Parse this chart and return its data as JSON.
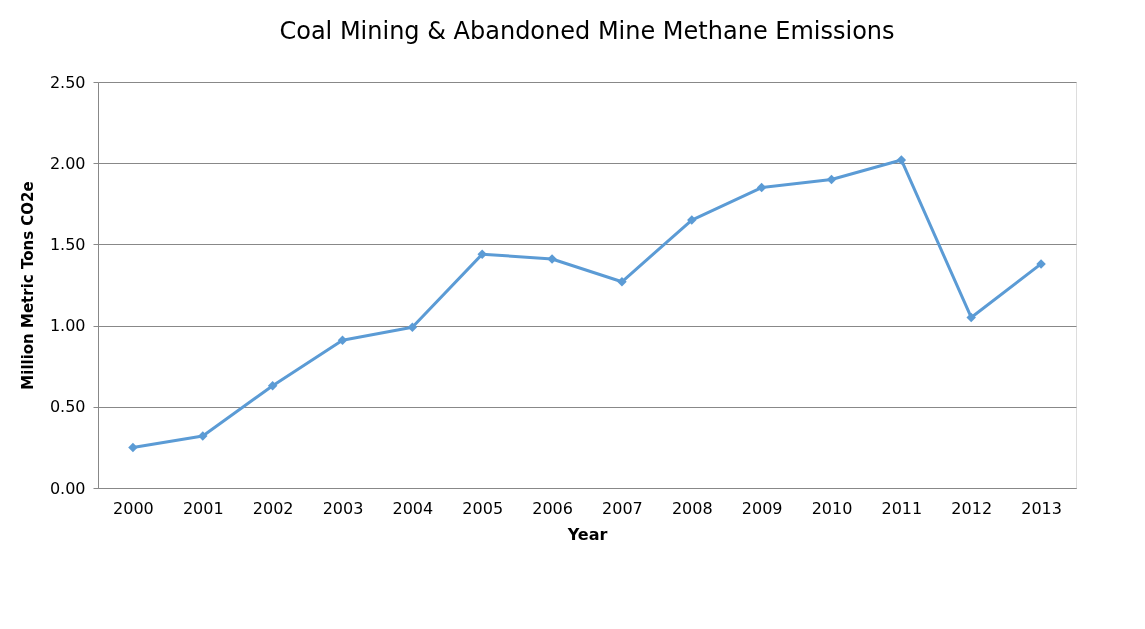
{
  "chart_data": {
    "type": "line",
    "title": "Coal Mining & Abandoned Mine Methane Emissions",
    "xlabel": "Year",
    "ylabel": "Million Metric Tons CO2e",
    "categories": [
      "2000",
      "2001",
      "2002",
      "2003",
      "2004",
      "2005",
      "2006",
      "2007",
      "2008",
      "2009",
      "2010",
      "2011",
      "2012",
      "2013"
    ],
    "series": [
      {
        "color": "#5b9bd5",
        "values": [
          0.25,
          0.32,
          0.63,
          0.91,
          0.99,
          1.44,
          1.41,
          1.27,
          1.65,
          1.85,
          1.9,
          2.02,
          1.05,
          1.38
        ]
      }
    ],
    "ylim": [
      0,
      2.5
    ],
    "yticks": [
      {
        "value": 0,
        "label": "0.00"
      },
      {
        "value": 0.5,
        "label": "0.50"
      },
      {
        "value": 1,
        "label": "1.00"
      },
      {
        "value": 1.5,
        "label": "1.50"
      },
      {
        "value": 2,
        "label": "2.00"
      },
      {
        "value": 2.5,
        "label": "2.50"
      }
    ],
    "grid": "y",
    "marker": "diamond",
    "line_style": "solid",
    "legend": false
  }
}
